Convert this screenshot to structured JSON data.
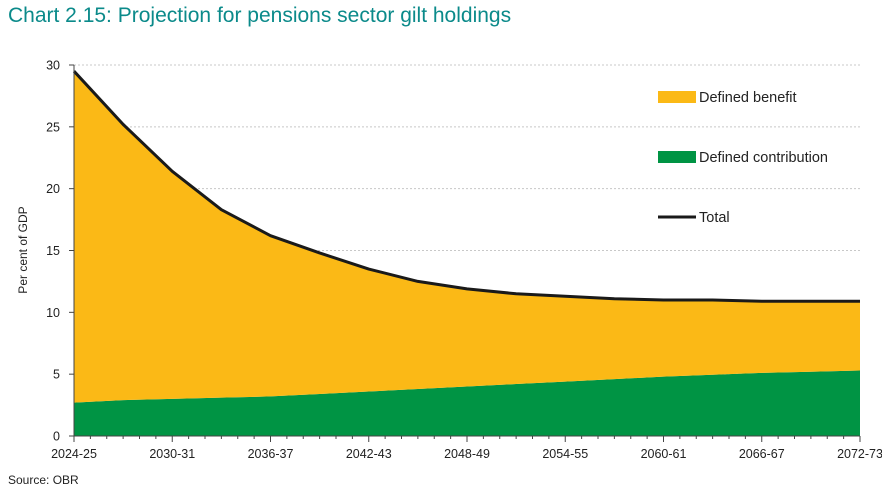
{
  "chart_data": {
    "type": "area",
    "title": "Chart 2.15: Projection for pensions sector gilt holdings",
    "source": "Source: OBR",
    "ylabel": "Per cent of GDP",
    "xlabel": "",
    "ylim": [
      0,
      30
    ],
    "yticks": [
      0,
      5,
      10,
      15,
      20,
      25,
      30
    ],
    "xtick_labels": [
      "2024-25",
      "2030-31",
      "2036-37",
      "2042-43",
      "2048-49",
      "2054-55",
      "2060-61",
      "2066-67",
      "2072-73"
    ],
    "grid": true,
    "legend_position": "top-right",
    "x": [
      0,
      3,
      6,
      9,
      12,
      15,
      18,
      21,
      24,
      27,
      30,
      33,
      36,
      39,
      42,
      45,
      48
    ],
    "series": [
      {
        "name": "Defined contribution",
        "kind": "stacked-area",
        "color": "#009444",
        "values": [
          2.7,
          2.9,
          3.0,
          3.1,
          3.2,
          3.4,
          3.6,
          3.8,
          4.0,
          4.2,
          4.4,
          4.6,
          4.8,
          4.95,
          5.1,
          5.2,
          5.3
        ]
      },
      {
        "name": "Defined benefit",
        "kind": "stacked-area",
        "color": "#fbb916",
        "values": [
          26.8,
          22.3,
          18.4,
          15.2,
          13.0,
          11.4,
          9.9,
          8.7,
          7.9,
          7.3,
          6.9,
          6.5,
          6.2,
          6.05,
          5.8,
          5.7,
          5.6
        ]
      },
      {
        "name": "Total",
        "kind": "line",
        "color": "#1a1a1a",
        "values": [
          29.5,
          25.2,
          21.4,
          18.3,
          16.2,
          14.8,
          13.5,
          12.5,
          11.9,
          11.5,
          11.3,
          11.1,
          11.0,
          11.0,
          10.9,
          10.9,
          10.9
        ]
      }
    ]
  }
}
